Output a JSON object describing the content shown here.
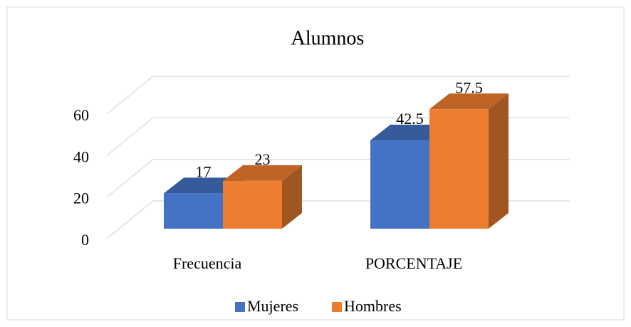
{
  "chart_data": {
    "type": "bar3d",
    "title": "Alumnos",
    "categories": [
      "Frecuencia",
      "PORCENTAJE"
    ],
    "series": [
      {
        "name": "Mujeres",
        "color": "#4472c4",
        "values": [
          17,
          42.5
        ]
      },
      {
        "name": "Hombres",
        "color": "#ed7d31",
        "values": [
          23,
          57.5
        ]
      }
    ],
    "ylim": [
      0,
      60
    ],
    "yticks": [
      0,
      20,
      40,
      60
    ],
    "grid": true,
    "legend": "bottom"
  }
}
